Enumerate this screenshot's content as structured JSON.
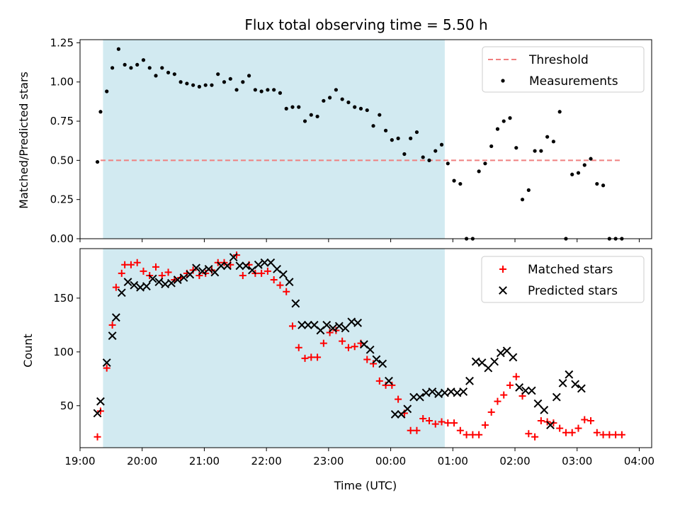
{
  "chart_data": [
    {
      "type": "scatter",
      "title": "Flux total observing time = 5.50 h",
      "xlabel": "",
      "ylabel": "Matched/Predicted stars",
      "ylim": [
        0,
        1.27
      ],
      "yticks": [
        "0.00",
        "0.25",
        "0.50",
        "0.75",
        "1.00",
        "1.25"
      ],
      "xlim_hours": [
        19.0,
        28.2
      ],
      "shaded_interval_hours": [
        19.37,
        24.87
      ],
      "shade_color": "#add8e6",
      "threshold": 0.5,
      "threshold_range_hours": [
        19.33,
        27.73
      ],
      "legend_position": "upper right",
      "series": [
        {
          "name": "Threshold",
          "kind": "dashed-line",
          "color": "#f08080"
        },
        {
          "name": "Measurements",
          "kind": "point",
          "color": "#000000",
          "x": [
            19.28,
            19.33,
            19.43,
            19.52,
            19.62,
            19.72,
            19.82,
            19.92,
            20.02,
            20.12,
            20.22,
            20.32,
            20.42,
            20.52,
            20.62,
            20.72,
            20.82,
            20.92,
            21.02,
            21.12,
            21.22,
            21.32,
            21.42,
            21.52,
            21.62,
            21.72,
            21.82,
            21.92,
            22.02,
            22.12,
            22.22,
            22.32,
            22.42,
            22.52,
            22.62,
            22.72,
            22.82,
            22.92,
            23.02,
            23.12,
            23.22,
            23.32,
            23.42,
            23.52,
            23.62,
            23.72,
            23.82,
            23.92,
            24.02,
            24.12,
            24.22,
            24.32,
            24.42,
            24.52,
            24.62,
            24.72,
            24.82,
            24.92,
            25.02,
            25.12,
            25.22,
            25.32,
            25.42,
            25.52,
            25.62,
            25.72,
            25.82,
            25.92,
            26.02,
            26.12,
            26.22,
            26.32,
            26.42,
            26.52,
            26.62,
            26.72,
            26.82,
            26.92,
            27.02,
            27.12,
            27.22,
            27.32,
            27.42,
            27.52,
            27.62,
            27.72
          ],
          "y": [
            0.49,
            0.81,
            0.94,
            1.09,
            1.21,
            1.11,
            1.09,
            1.11,
            1.14,
            1.09,
            1.04,
            1.09,
            1.06,
            1.05,
            1.0,
            0.99,
            0.98,
            0.97,
            0.98,
            0.98,
            1.05,
            1.0,
            1.02,
            0.95,
            1.0,
            1.04,
            0.95,
            0.94,
            0.95,
            0.95,
            0.93,
            0.83,
            0.84,
            0.84,
            0.75,
            0.79,
            0.78,
            0.88,
            0.9,
            0.95,
            0.89,
            0.87,
            0.84,
            0.83,
            0.82,
            0.72,
            0.79,
            0.69,
            0.63,
            0.64,
            0.54,
            0.64,
            0.68,
            0.52,
            0.5,
            0.56,
            0.6,
            0.48,
            0.37,
            0.35,
            0.0,
            0.0,
            0.43,
            0.48,
            0.59,
            0.7,
            0.75,
            0.77,
            0.58,
            0.25,
            0.31,
            0.56,
            0.56,
            0.65,
            0.62,
            0.81,
            0.0,
            0.41,
            0.42,
            0.47,
            0.51,
            0.35,
            0.34,
            0.0,
            0.0,
            0.0
          ]
        }
      ]
    },
    {
      "type": "scatter",
      "title": "",
      "xlabel": "Time (UTC)",
      "ylabel": "Count",
      "ylim": [
        11,
        196
      ],
      "yticks": [
        "50",
        "100",
        "150"
      ],
      "xticks": [
        "19:00",
        "20:00",
        "21:00",
        "22:00",
        "23:00",
        "00:00",
        "01:00",
        "02:00",
        "03:00",
        "04:00"
      ],
      "xlim_hours": [
        19.0,
        28.2
      ],
      "shaded_interval_hours": [
        19.37,
        24.87
      ],
      "legend_position": "upper right",
      "series": [
        {
          "name": "Matched stars",
          "kind": "plus",
          "color": "#ff0000",
          "x": [
            19.28,
            19.33,
            19.43,
            19.52,
            19.58,
            19.67,
            19.72,
            19.82,
            19.92,
            20.02,
            20.12,
            20.22,
            20.32,
            20.42,
            20.52,
            20.62,
            20.72,
            20.82,
            20.92,
            21.02,
            21.12,
            21.22,
            21.32,
            21.42,
            21.52,
            21.62,
            21.72,
            21.82,
            21.92,
            22.02,
            22.12,
            22.22,
            22.32,
            22.42,
            22.52,
            22.62,
            22.72,
            22.82,
            22.92,
            23.02,
            23.12,
            23.22,
            23.32,
            23.42,
            23.52,
            23.62,
            23.72,
            23.82,
            23.92,
            24.02,
            24.12,
            24.22,
            24.32,
            24.42,
            24.52,
            24.62,
            24.72,
            24.82,
            24.92,
            25.02,
            25.12,
            25.22,
            25.32,
            25.42,
            25.52,
            25.62,
            25.72,
            25.82,
            25.92,
            26.02,
            26.12,
            26.22,
            26.32,
            26.42,
            26.52,
            26.62,
            26.72,
            26.82,
            26.92,
            27.02,
            27.12,
            27.22,
            27.32,
            27.42,
            27.52,
            27.62,
            27.72
          ],
          "y": [
            21,
            45,
            85,
            125,
            160,
            173,
            181,
            181,
            183,
            175,
            171,
            179,
            171,
            174,
            167,
            169,
            173,
            176,
            171,
            173,
            176,
            183,
            183,
            181,
            190,
            171,
            181,
            173,
            173,
            175,
            167,
            162,
            156,
            124,
            104,
            94,
            95,
            95,
            108,
            118,
            120,
            110,
            104,
            105,
            108,
            93,
            89,
            73,
            69,
            69,
            56,
            43,
            27,
            27,
            38,
            36,
            33,
            35,
            34,
            34,
            27,
            23,
            23,
            23,
            32,
            44,
            54,
            60,
            69,
            77,
            59,
            24,
            21,
            36,
            35,
            34,
            29,
            25,
            25,
            29,
            37,
            36,
            25,
            23,
            23,
            23,
            23
          ]
        },
        {
          "name": "Predicted stars",
          "kind": "x",
          "color": "#000000",
          "x": [
            19.28,
            19.33,
            19.43,
            19.52,
            19.58,
            19.67,
            19.77,
            19.87,
            19.97,
            20.07,
            20.17,
            20.27,
            20.37,
            20.47,
            20.57,
            20.67,
            20.77,
            20.87,
            20.97,
            21.07,
            21.17,
            21.27,
            21.37,
            21.47,
            21.57,
            21.67,
            21.77,
            21.87,
            21.97,
            22.07,
            22.17,
            22.27,
            22.37,
            22.47,
            22.57,
            22.67,
            22.77,
            22.87,
            22.97,
            23.07,
            23.17,
            23.27,
            23.37,
            23.47,
            23.57,
            23.67,
            23.77,
            23.87,
            23.97,
            24.07,
            24.17,
            24.27,
            24.37,
            24.47,
            24.57,
            24.67,
            24.77,
            24.87,
            24.97,
            25.07,
            25.17,
            25.27,
            25.37,
            25.47,
            25.57,
            25.67,
            25.77,
            25.87,
            25.97,
            26.07,
            26.17,
            26.27,
            26.37,
            26.47,
            26.57,
            26.67,
            26.77,
            26.87,
            26.97,
            27.07
          ],
          "y": [
            43,
            54,
            90,
            115,
            132,
            155,
            165,
            162,
            160,
            161,
            168,
            165,
            163,
            164,
            167,
            169,
            172,
            178,
            175,
            177,
            174,
            180,
            180,
            188,
            180,
            180,
            176,
            181,
            183,
            183,
            177,
            172,
            165,
            145,
            125,
            125,
            125,
            120,
            125,
            122,
            124,
            122,
            128,
            127,
            107,
            102,
            93,
            89,
            73,
            42,
            42,
            47,
            58,
            58,
            62,
            63,
            61,
            62,
            63,
            62,
            63,
            73,
            91,
            90,
            85,
            91,
            99,
            101,
            95,
            67,
            64,
            64,
            52,
            46,
            32,
            58,
            71,
            79,
            70,
            66
          ]
        }
      ]
    }
  ]
}
